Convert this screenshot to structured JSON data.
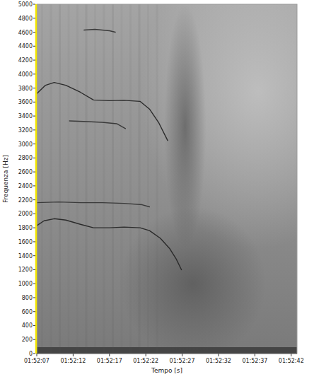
{
  "chart_data": {
    "type": "spectrogram",
    "x_label": "Tempo [s]",
    "y_label": "Frequenza [Hz]",
    "xlim": [
      0,
      35.8
    ],
    "xticks": [
      {
        "value": 0,
        "label": "01:52:07"
      },
      {
        "value": 5,
        "label": "01:52:12"
      },
      {
        "value": 10,
        "label": "01:52:17"
      },
      {
        "value": 15,
        "label": "01:52:22"
      },
      {
        "value": 20,
        "label": "01:52:27"
      },
      {
        "value": 25,
        "label": "01:52:32"
      },
      {
        "value": 30,
        "label": "01:52:37"
      },
      {
        "value": 35,
        "label": "01:52:42"
      }
    ],
    "ylim": [
      0,
      5000
    ],
    "yticks": [
      0,
      200,
      400,
      600,
      800,
      1000,
      1200,
      1400,
      1600,
      1800,
      2000,
      2200,
      2400,
      2600,
      2800,
      3000,
      3200,
      3400,
      3600,
      3800,
      4000,
      4200,
      4400,
      4600,
      4800,
      5000
    ],
    "grid": false,
    "series": [
      {
        "color": "#2b2b2b",
        "x": [
          0,
          1,
          2.4,
          4,
          6,
          7.8,
          10,
          12,
          14.2,
          15.5,
          17,
          18.3,
          19.2,
          19.9
        ],
        "values": [
          1830,
          1900,
          1930,
          1910,
          1850,
          1800,
          1800,
          1810,
          1800,
          1760,
          1650,
          1500,
          1350,
          1200
        ]
      },
      {
        "color": "#2b2b2b",
        "x": [
          0,
          1.2,
          2.4,
          4,
          6,
          7.8,
          10,
          12,
          14.2,
          15.5,
          16.8,
          18
        ],
        "values": [
          3720,
          3840,
          3880,
          3840,
          3740,
          3630,
          3620,
          3625,
          3610,
          3500,
          3300,
          3050
        ]
      },
      {
        "color": "#3a3a3a",
        "x": [
          0,
          3,
          6,
          9,
          12,
          14.5,
          15.5
        ],
        "values": [
          2160,
          2170,
          2160,
          2160,
          2150,
          2130,
          2100
        ]
      },
      {
        "color": "#3a3a3a",
        "x": [
          4.5,
          7,
          9,
          11,
          12.2
        ],
        "values": [
          3330,
          3320,
          3310,
          3290,
          3220
        ]
      },
      {
        "color": "#3a3a3a",
        "x": [
          6.5,
          8,
          10,
          10.8
        ],
        "values": [
          4630,
          4640,
          4620,
          4600
        ]
      }
    ]
  }
}
